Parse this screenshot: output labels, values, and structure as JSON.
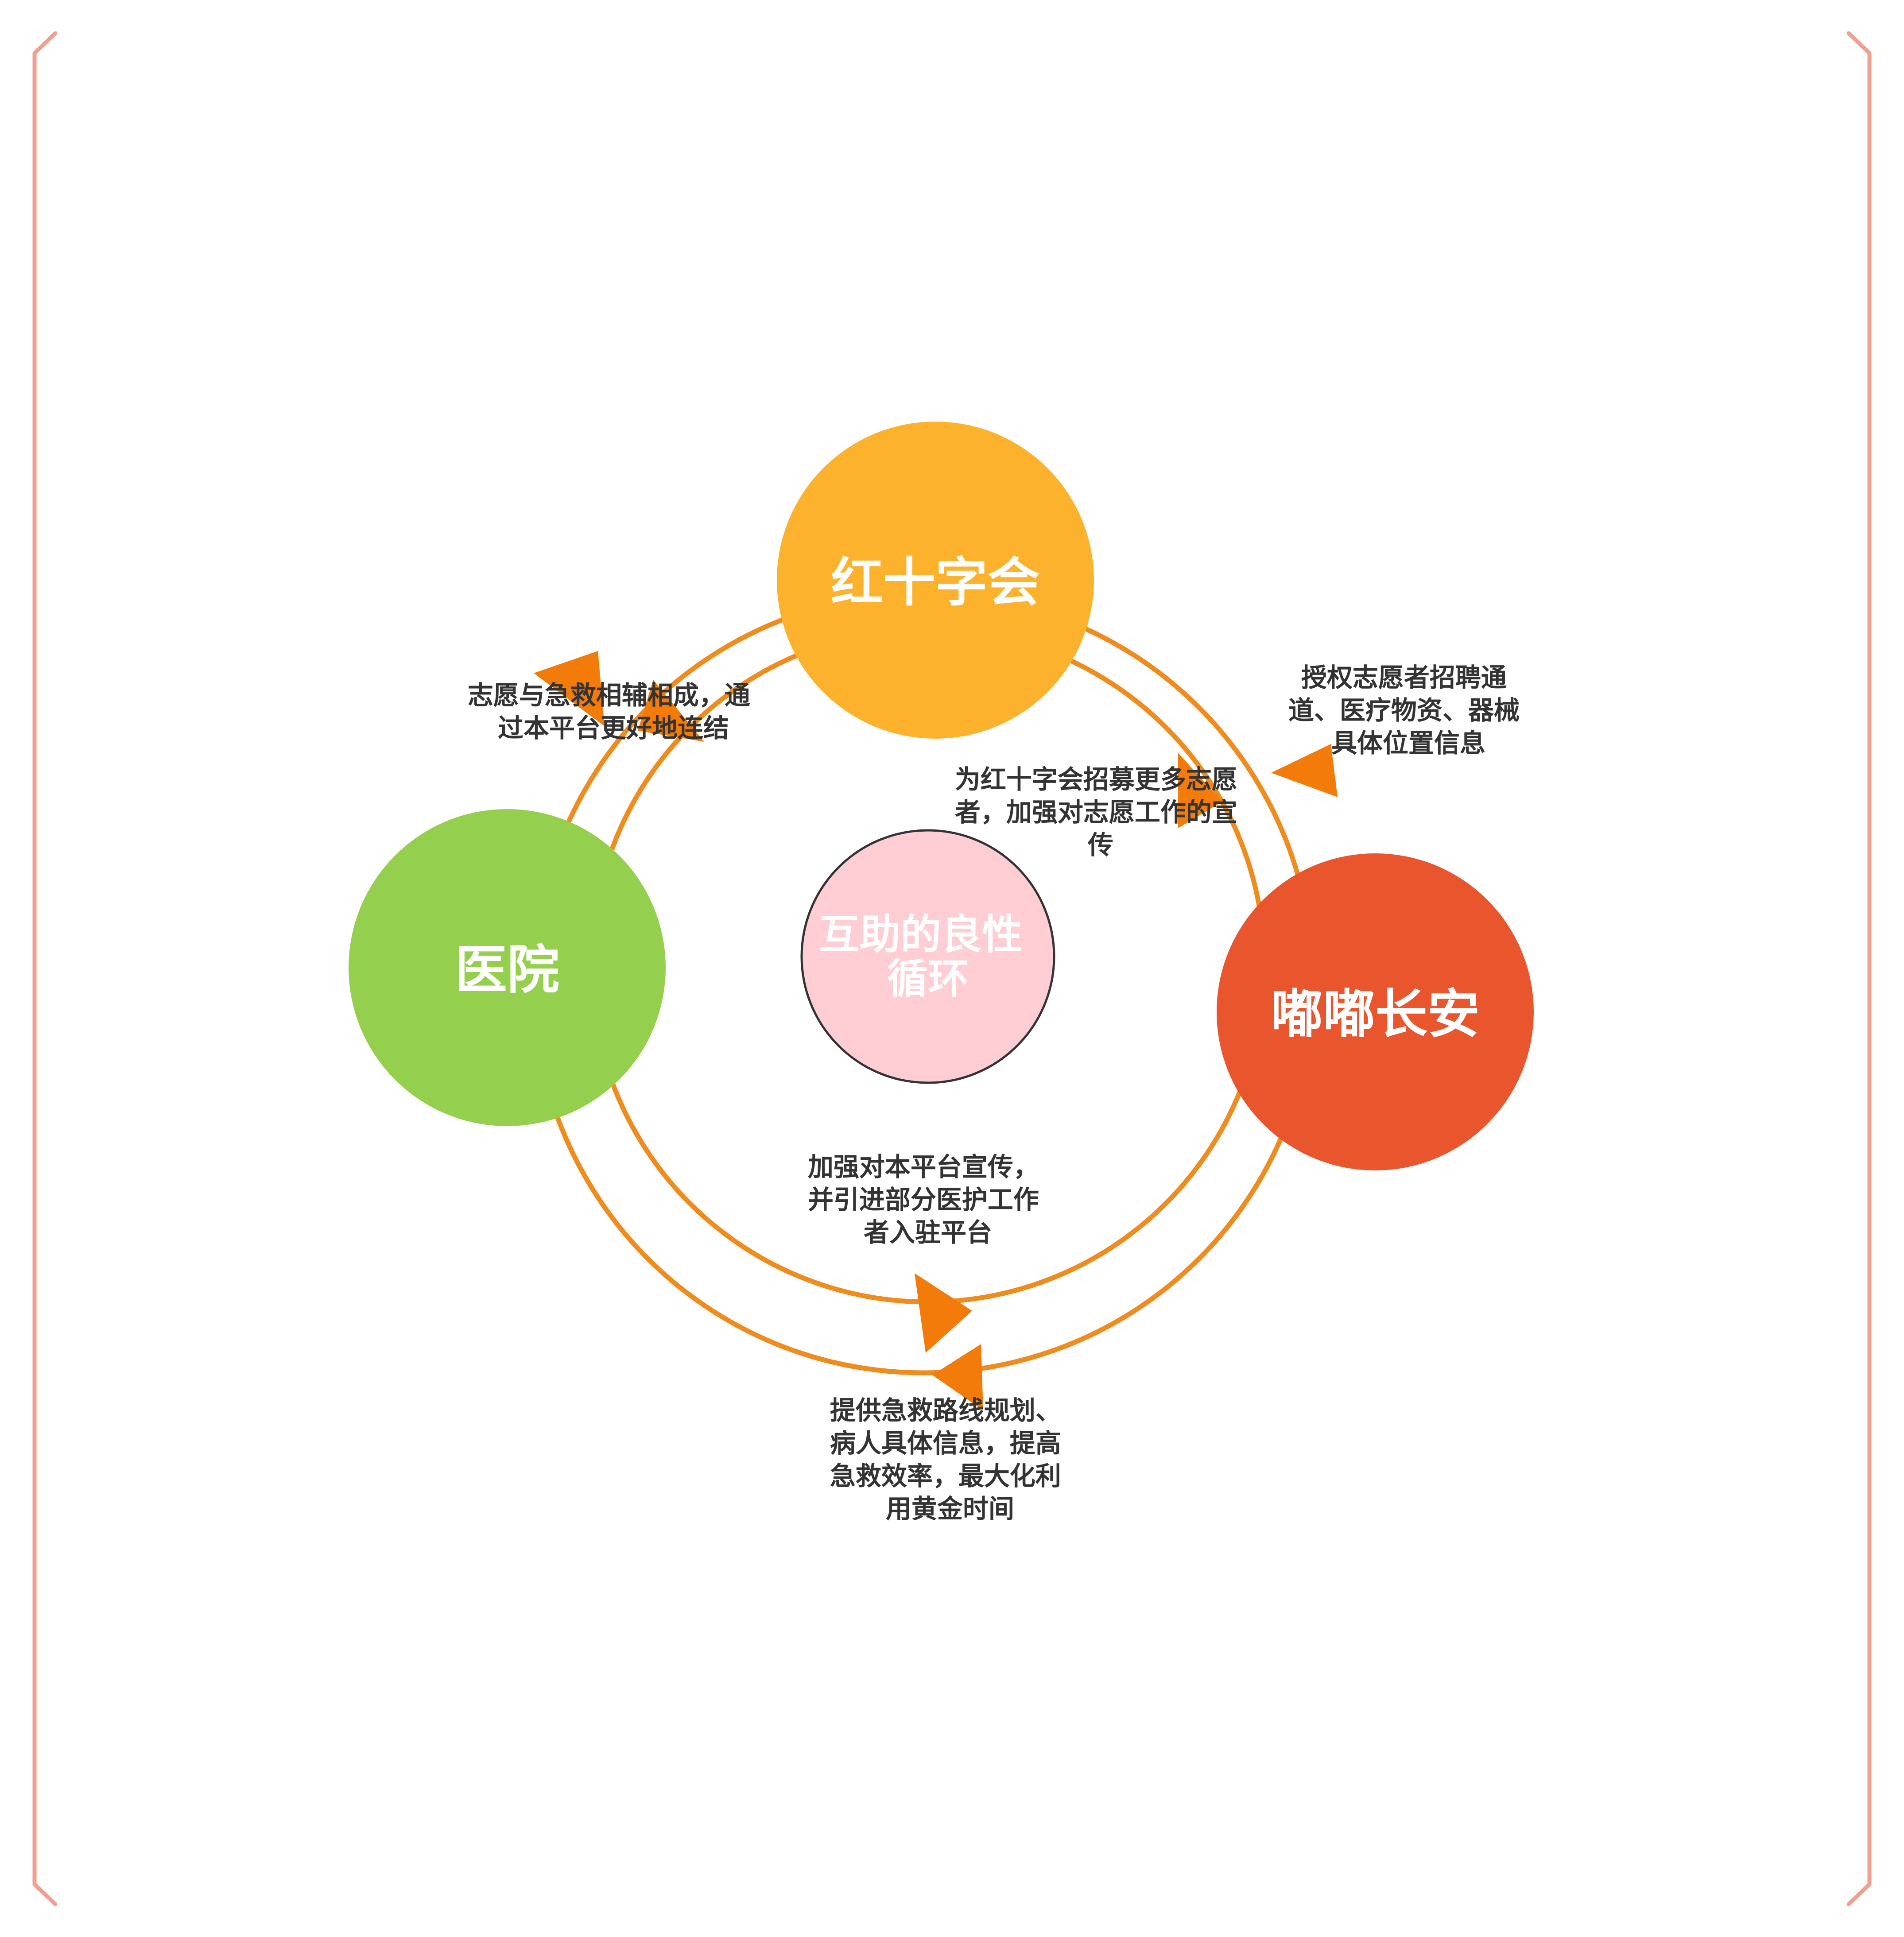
{
  "colors": {
    "frame": "#f0a090",
    "ring": "#f08c1e",
    "arrow": "#f27b0a",
    "red_cross": "#fdb22e",
    "hospital": "#94d04e",
    "dudu": "#e9552c",
    "center_fill": "#ffcdd4",
    "center_stroke": "#333333",
    "center_text": "#ffffff"
  },
  "nodes": {
    "red_cross": {
      "label": "红十字会"
    },
    "hospital": {
      "label": "医院"
    },
    "dudu": {
      "label": "嘟嘟长安"
    },
    "center": {
      "lines": [
        "互助的良性",
        "循环"
      ]
    }
  },
  "edges": {
    "hospital_red_cross": {
      "lines": [
        "志愿与急救相辅相成，通",
        "过本平台更好地连结"
      ]
    },
    "dudu_red_cross": {
      "lines": [
        "授权志愿者招聘通",
        "道、医疗物资、器械",
        "具体位置信息"
      ]
    },
    "red_cross_dudu": {
      "lines": [
        "为红十字会招募更多志愿",
        "者，加强对志愿工作的宣",
        "传"
      ]
    },
    "dudu_hospital_inner": {
      "lines": [
        "加强对本平台宣传，",
        "并引进部分医护工作",
        "者入驻平台"
      ]
    },
    "dudu_hospital_outer": {
      "lines": [
        "提供急救路线规划、",
        "病人具体信息，提高",
        "急救效率，最大化利",
        "用黄金时间"
      ]
    }
  }
}
